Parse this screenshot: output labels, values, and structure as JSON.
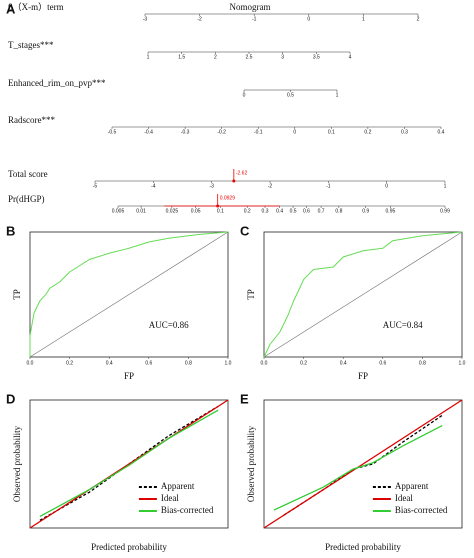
{
  "chart_data": [
    {
      "type": "nomogram",
      "panel": "A",
      "title": "Nomogram",
      "axes": [
        {
          "label": "β（X-m）term",
          "lim": [
            -3,
            2
          ],
          "ticks": [
            -3,
            -2,
            -1,
            0,
            1,
            2
          ]
        },
        {
          "label": "T_stages***",
          "lim": [
            1,
            4
          ],
          "ticks": [
            1,
            1.5,
            2,
            2.5,
            3,
            3.5,
            4
          ]
        },
        {
          "label": "Enhanced_rim_on_pvp***",
          "lim": [
            0,
            1
          ],
          "ticks": [
            0,
            0.5,
            1
          ]
        },
        {
          "label": "Radscore***",
          "lim": [
            -0.5,
            0.4
          ],
          "ticks": [
            -0.5,
            -0.4,
            -0.3,
            -0.2,
            -0.1,
            0,
            0.1,
            0.2,
            0.3,
            0.4
          ]
        },
        {
          "label": "Total score",
          "lim": [
            -5,
            1
          ],
          "ticks": [
            -5,
            -4,
            -3,
            -2,
            -1,
            0,
            1
          ],
          "marked": -2.62
        },
        {
          "label": "Pr(dHGP)",
          "scale": "logit",
          "lim": [
            0.005,
            0.99
          ],
          "ticks": [
            0.005,
            0.01,
            0.025,
            0.05,
            0.1,
            0.2,
            0.3,
            0.4,
            0.5,
            0.6,
            0.7,
            0.8,
            0.9,
            0.95,
            0.99
          ],
          "marked": 0.0929,
          "interval": [
            0.02,
            0.4
          ]
        }
      ]
    },
    {
      "type": "roc",
      "panel": "B",
      "x_label": "FP",
      "y_label": "TP",
      "annotation": "AUC=0.86",
      "xlim": [
        0,
        1
      ],
      "ylim": [
        0,
        1
      ],
      "xticks": [
        {
          "value": 0,
          "label": "0.0"
        },
        0.2,
        0.4,
        0.6,
        0.8,
        {
          "value": 1,
          "label": "1.0"
        }
      ],
      "series": [
        {
          "color": "#66dd55",
          "x": [
            0,
            0,
            0.02,
            0.05,
            0.08,
            0.1,
            0.15,
            0.2,
            0.25,
            0.3,
            0.4,
            0.5,
            0.6,
            0.7,
            0.85,
            1
          ],
          "values": [
            0,
            0.17,
            0.35,
            0.45,
            0.5,
            0.55,
            0.6,
            0.68,
            0.73,
            0.78,
            0.83,
            0.87,
            0.92,
            0.95,
            0.98,
            1
          ]
        }
      ]
    },
    {
      "type": "roc",
      "panel": "C",
      "x_label": "FP",
      "y_label": "TP",
      "annotation": "AUC=0.84",
      "xlim": [
        0,
        1
      ],
      "ylim": [
        0,
        1
      ],
      "xticks": [
        {
          "value": 0,
          "label": "0.0"
        },
        0.2,
        0.4,
        0.6,
        0.8,
        {
          "value": 1,
          "label": "1.0"
        }
      ],
      "series": [
        {
          "color": "#66dd55",
          "x": [
            0,
            0.03,
            0.08,
            0.12,
            0.15,
            0.18,
            0.2,
            0.25,
            0.35,
            0.4,
            0.5,
            0.6,
            0.65,
            0.8,
            1
          ],
          "values": [
            0,
            0.1,
            0.2,
            0.33,
            0.45,
            0.55,
            0.62,
            0.7,
            0.72,
            0.8,
            0.85,
            0.87,
            0.93,
            0.97,
            1
          ]
        }
      ]
    },
    {
      "type": "calibration",
      "panel": "D",
      "x_label": "Predicted probability",
      "y_label": "Observed probability",
      "xlim": [
        0,
        1
      ],
      "ylim": [
        0,
        1
      ],
      "series": [
        {
          "name": "Apparent",
          "color": "#000000",
          "dash": true,
          "x": [
            0.05,
            0.3,
            0.5,
            0.7,
            0.95
          ],
          "values": [
            0.06,
            0.28,
            0.5,
            0.72,
            0.95
          ]
        },
        {
          "name": "Ideal",
          "color": "#dd0000",
          "x": [
            0,
            1
          ],
          "values": [
            0,
            1
          ]
        },
        {
          "name": "Bias-corrected",
          "color": "#33cc33",
          "x": [
            0.05,
            0.3,
            0.5,
            0.7,
            0.95
          ],
          "values": [
            0.09,
            0.3,
            0.49,
            0.7,
            0.92
          ]
        }
      ]
    },
    {
      "type": "calibration",
      "panel": "E",
      "x_label": "Predicted probability",
      "y_label": "Observed probability",
      "xlim": [
        0,
        1
      ],
      "ylim": [
        0,
        1
      ],
      "series": [
        {
          "name": "Apparent",
          "color": "#000000",
          "dash": true,
          "x": [
            0.1,
            0.3,
            0.45,
            0.55,
            0.7,
            0.9
          ],
          "values": [
            0.1,
            0.3,
            0.46,
            0.5,
            0.67,
            0.88
          ]
        },
        {
          "name": "Ideal",
          "color": "#dd0000",
          "x": [
            0,
            1
          ],
          "values": [
            0,
            1
          ]
        },
        {
          "name": "Bias-corrected",
          "color": "#33cc33",
          "x": [
            0.05,
            0.3,
            0.45,
            0.55,
            0.7,
            0.9
          ],
          "values": [
            0.14,
            0.32,
            0.46,
            0.51,
            0.64,
            0.8
          ]
        }
      ]
    }
  ]
}
